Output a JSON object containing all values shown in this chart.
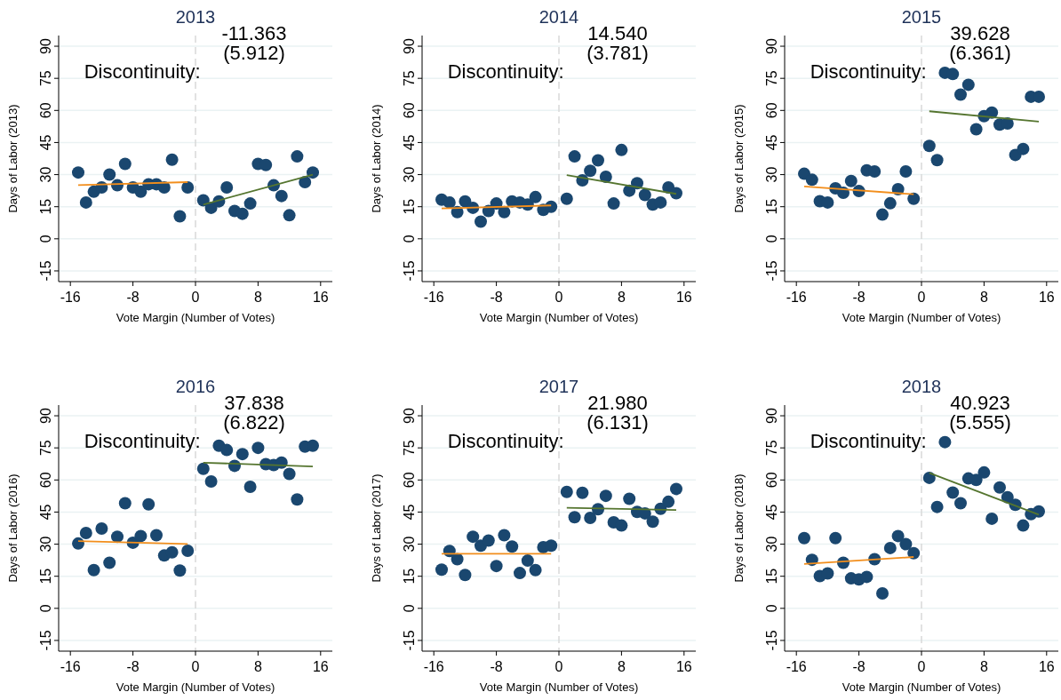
{
  "chart_data": [
    {
      "type": "scatter",
      "title": "2013",
      "xlabel": "Vote Margin (Number of Votes)",
      "ylabel": "Days of Labor (2013)",
      "xlim": [
        -17.5,
        17.5
      ],
      "xticks": [
        -16,
        -8,
        0,
        8,
        16
      ],
      "ylim": [
        -20,
        95
      ],
      "yticks": [
        -15,
        0,
        15,
        30,
        45,
        60,
        75,
        90
      ],
      "grid": "y",
      "ref_lines": [
        {
          "axis": "x",
          "value": 0,
          "color": "#d9d9d9",
          "line_style": "dashed"
        }
      ],
      "annotations": [
        "Discontinuity:",
        "-11.363",
        "(5.912)"
      ],
      "series": [
        {
          "marker": "circle",
          "color": "#1a476f",
          "x": [
            -15,
            -14,
            -13,
            -12,
            -11,
            -10,
            -9,
            -8,
            -7,
            -6,
            -5,
            -4,
            -3,
            -2,
            -1,
            1,
            2,
            3,
            4,
            5,
            6,
            7,
            8,
            9,
            10,
            11,
            12,
            13,
            14,
            15
          ],
          "values": [
            31,
            17,
            22,
            24,
            30,
            25,
            35,
            24,
            22,
            25.5,
            25.5,
            24,
            37,
            10.5,
            24,
            18,
            14.5,
            17.5,
            24,
            13,
            11.7,
            16.5,
            35,
            34.5,
            25,
            20,
            11,
            38.5,
            26.5,
            31
          ]
        },
        {
          "type": "line",
          "marker": "none",
          "color": "#f28e1c",
          "x": [
            -15,
            -1
          ],
          "values": [
            25.1,
            26.5
          ]
        },
        {
          "type": "line",
          "marker": "none",
          "color": "#55752f",
          "x": [
            1,
            15
          ],
          "values": [
            16,
            30
          ]
        }
      ]
    },
    {
      "type": "scatter",
      "title": "2014",
      "xlabel": "Vote Margin (Number of Votes)",
      "ylabel": "Days of Labor (2014)",
      "xlim": [
        -17.5,
        17.5
      ],
      "xticks": [
        -16,
        -8,
        0,
        8,
        16
      ],
      "ylim": [
        -20,
        95
      ],
      "yticks": [
        -15,
        0,
        15,
        30,
        45,
        60,
        75,
        90
      ],
      "grid": "y",
      "ref_lines": [
        {
          "axis": "x",
          "value": 0,
          "color": "#d9d9d9",
          "line_style": "dashed"
        }
      ],
      "annotations": [
        "Discontinuity:",
        "14.540",
        "(3.781)"
      ],
      "series": [
        {
          "marker": "circle",
          "color": "#1a476f",
          "x": [
            -15,
            -14,
            -13,
            -12,
            -11,
            -10,
            -9,
            -8,
            -7,
            -6,
            -5,
            -4,
            -3,
            -2,
            -1,
            1,
            2,
            3,
            4,
            5,
            6,
            7,
            8,
            9,
            10,
            11,
            12,
            13,
            14,
            15
          ],
          "values": [
            18.3,
            17,
            12.5,
            17.5,
            14.5,
            8,
            13,
            16.5,
            12.5,
            17.5,
            17,
            16,
            19.5,
            13.5,
            15,
            18.7,
            38.5,
            27.3,
            31.8,
            36.7,
            29,
            16.5,
            41.5,
            22.5,
            26,
            20.5,
            16,
            17,
            24,
            21.3
          ]
        },
        {
          "type": "line",
          "marker": "none",
          "color": "#f28e1c",
          "x": [
            -15,
            -1
          ],
          "values": [
            14.2,
            15.6
          ]
        },
        {
          "type": "line",
          "marker": "none",
          "color": "#55752f",
          "x": [
            1,
            15
          ],
          "values": [
            29.8,
            21
          ]
        }
      ]
    },
    {
      "type": "scatter",
      "title": "2015",
      "xlabel": "Vote Margin (Number of Votes)",
      "ylabel": "Days of Labor (2015)",
      "xlim": [
        -17.5,
        17.5
      ],
      "xticks": [
        -16,
        -8,
        0,
        8,
        16
      ],
      "ylim": [
        -20,
        95
      ],
      "yticks": [
        -15,
        0,
        15,
        30,
        45,
        60,
        75,
        90
      ],
      "grid": "y",
      "ref_lines": [
        {
          "axis": "x",
          "value": 0,
          "color": "#d9d9d9",
          "line_style": "dashed"
        }
      ],
      "annotations": [
        "Discontinuity:",
        "39.628",
        "(6.361)"
      ],
      "series": [
        {
          "marker": "circle",
          "color": "#1a476f",
          "x": [
            -15,
            -14,
            -13,
            -12,
            -11,
            -10,
            -9,
            -8,
            -7,
            -6,
            -5,
            -4,
            -3,
            -2,
            -1,
            1,
            2,
            3,
            4,
            5,
            6,
            7,
            8,
            9,
            10,
            11,
            12,
            13,
            14,
            15
          ],
          "values": [
            30.4,
            27.6,
            17.6,
            17,
            23.6,
            21.5,
            27,
            22.3,
            32,
            31.5,
            11.3,
            16.6,
            23.2,
            31.5,
            18.7,
            43.4,
            36.8,
            77.6,
            77,
            67.4,
            72,
            51.2,
            57.3,
            59,
            53.4,
            53.9,
            39.2,
            42,
            66.4,
            66.4
          ]
        },
        {
          "type": "line",
          "marker": "none",
          "color": "#f28e1c",
          "x": [
            -15,
            -1
          ],
          "values": [
            24.5,
            20.8
          ]
        },
        {
          "type": "line",
          "marker": "none",
          "color": "#55752f",
          "x": [
            1,
            15
          ],
          "values": [
            59.6,
            54.8
          ]
        }
      ]
    },
    {
      "type": "scatter",
      "title": "2016",
      "xlabel": "Vote Margin (Number of Votes)",
      "ylabel": "Days of Labor (2016)",
      "xlim": [
        -17.5,
        17.5
      ],
      "xticks": [
        -16,
        -8,
        0,
        8,
        16
      ],
      "ylim": [
        -20,
        95
      ],
      "yticks": [
        -15,
        0,
        15,
        30,
        45,
        60,
        75,
        90
      ],
      "grid": "y",
      "ref_lines": [
        {
          "axis": "x",
          "value": 0,
          "color": "#d9d9d9",
          "line_style": "dashed"
        }
      ],
      "annotations": [
        "Discontinuity:",
        "37.838",
        "(6.822)"
      ],
      "series": [
        {
          "marker": "circle",
          "color": "#1a476f",
          "x": [
            -15,
            -14,
            -13,
            -12,
            -11,
            -10,
            -9,
            -8,
            -7,
            -6,
            -5,
            -4,
            -3,
            -2,
            -1,
            1,
            2,
            3,
            4,
            5,
            6,
            7,
            8,
            9,
            10,
            11,
            12,
            13,
            14,
            15
          ],
          "values": [
            30.3,
            35.2,
            17.9,
            37.3,
            21.3,
            33.5,
            49.1,
            30.7,
            33.8,
            48.6,
            34.2,
            24.7,
            26.2,
            17.7,
            26.9,
            65.2,
            59.3,
            76,
            74,
            66.6,
            72.1,
            56.8,
            75,
            67.4,
            67,
            68.1,
            62.8,
            50.9,
            75.6,
            76
          ]
        },
        {
          "type": "line",
          "marker": "none",
          "color": "#f28e1c",
          "x": [
            -15,
            -1
          ],
          "values": [
            31.4,
            30.1
          ]
        },
        {
          "type": "line",
          "marker": "none",
          "color": "#55752f",
          "x": [
            1,
            15
          ],
          "values": [
            68.1,
            66.3
          ]
        }
      ]
    },
    {
      "type": "scatter",
      "title": "2017",
      "xlabel": "Vote Margin (Number of Votes)",
      "ylabel": "Days of Labor (2017)",
      "xlim": [
        -17.5,
        17.5
      ],
      "xticks": [
        -16,
        -8,
        0,
        8,
        16
      ],
      "ylim": [
        -20,
        95
      ],
      "yticks": [
        -15,
        0,
        15,
        30,
        45,
        60,
        75,
        90
      ],
      "grid": "y",
      "ref_lines": [
        {
          "axis": "x",
          "value": 0,
          "color": "#d9d9d9",
          "line_style": "dashed"
        }
      ],
      "annotations": [
        "Discontinuity:",
        "21.980",
        "(6.131)"
      ],
      "series": [
        {
          "marker": "circle",
          "color": "#1a476f",
          "x": [
            -15,
            -14,
            -13,
            -12,
            -11,
            -10,
            -9,
            -8,
            -7,
            -6,
            -5,
            -4,
            -3,
            -2,
            -1,
            1,
            2,
            3,
            4,
            5,
            6,
            7,
            8,
            9,
            10,
            11,
            12,
            13,
            14,
            15
          ],
          "values": [
            18.1,
            26.8,
            23,
            15.6,
            33.5,
            29.3,
            31.7,
            19.8,
            34.2,
            28.9,
            16.5,
            22.3,
            17.9,
            28.6,
            29.3,
            54.4,
            42.6,
            54,
            42.3,
            46.3,
            52.6,
            40.2,
            38.7,
            51.2,
            45.1,
            44.4,
            40.5,
            46.5,
            49.8,
            55.8
          ]
        },
        {
          "type": "line",
          "marker": "none",
          "color": "#f28e1c",
          "x": [
            -15,
            -1
          ],
          "values": [
            25.5,
            25.5
          ]
        },
        {
          "type": "line",
          "marker": "none",
          "color": "#55752f",
          "x": [
            1,
            15
          ],
          "values": [
            47,
            46
          ]
        }
      ]
    },
    {
      "type": "scatter",
      "title": "2018",
      "xlabel": "Vote Margin (Number of Votes)",
      "ylabel": "Days of Labor (2018)",
      "xlim": [
        -17.5,
        17.5
      ],
      "xticks": [
        -16,
        -8,
        0,
        8,
        16
      ],
      "ylim": [
        -20,
        95
      ],
      "yticks": [
        -15,
        0,
        15,
        30,
        45,
        60,
        75,
        90
      ],
      "grid": "y",
      "ref_lines": [
        {
          "axis": "x",
          "value": 0,
          "color": "#d9d9d9",
          "line_style": "dashed"
        }
      ],
      "annotations": [
        "Discontinuity:",
        "40.923",
        "(5.555)"
      ],
      "series": [
        {
          "marker": "circle",
          "color": "#1a476f",
          "x": [
            -15,
            -14,
            -13,
            -12,
            -11,
            -10,
            -9,
            -8,
            -7,
            -6,
            -5,
            -4,
            -3,
            -2,
            -1,
            1,
            2,
            3,
            4,
            5,
            6,
            7,
            8,
            9,
            10,
            11,
            12,
            13,
            14,
            15
          ],
          "values": [
            32.8,
            22.7,
            15.1,
            16.3,
            32.8,
            21.3,
            14,
            13.5,
            14.7,
            23,
            7,
            28.2,
            33.8,
            30,
            25.8,
            61,
            47.4,
            77.7,
            54.1,
            49.1,
            60.7,
            60,
            63.5,
            41.9,
            56.5,
            51.9,
            48.4,
            38.7,
            44,
            45.3
          ]
        },
        {
          "type": "line",
          "marker": "none",
          "color": "#f28e1c",
          "x": [
            -15,
            -1
          ],
          "values": [
            20.7,
            24
          ]
        },
        {
          "type": "line",
          "marker": "none",
          "color": "#55752f",
          "x": [
            1,
            15
          ],
          "values": [
            63.3,
            43.8
          ]
        }
      ]
    }
  ]
}
